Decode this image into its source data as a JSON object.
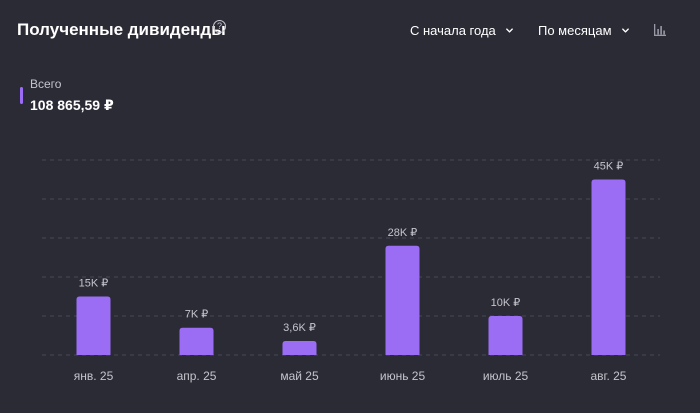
{
  "header": {
    "title": "Полученные дивиденды",
    "help_icon": "question-circle-icon",
    "period_label": "С начала года",
    "grouping_label": "По месяцам",
    "chart_toggle_icon": "bar-chart-icon"
  },
  "total": {
    "label": "Всего",
    "value": "108 865,59 ₽"
  },
  "colors": {
    "background": "#2b2b36",
    "bar": "#9b6df5",
    "gridline": "#4a4a56",
    "text": "#ffffff",
    "muted_text": "#c4c4cc"
  },
  "chart_data": {
    "type": "bar",
    "categories": [
      "янв. 25",
      "апр. 25",
      "май 25",
      "июнь 25",
      "июль 25",
      "авг. 25"
    ],
    "values": [
      15000,
      7000,
      3600,
      28000,
      10000,
      45000
    ],
    "data_labels": [
      "15K ₽",
      "7K ₽",
      "3,6K ₽",
      "28K ₽",
      "10K ₽",
      "45K ₽"
    ],
    "title": "",
    "xlabel": "",
    "ylabel": "",
    "ylim": [
      0,
      50000
    ],
    "grid": true
  }
}
